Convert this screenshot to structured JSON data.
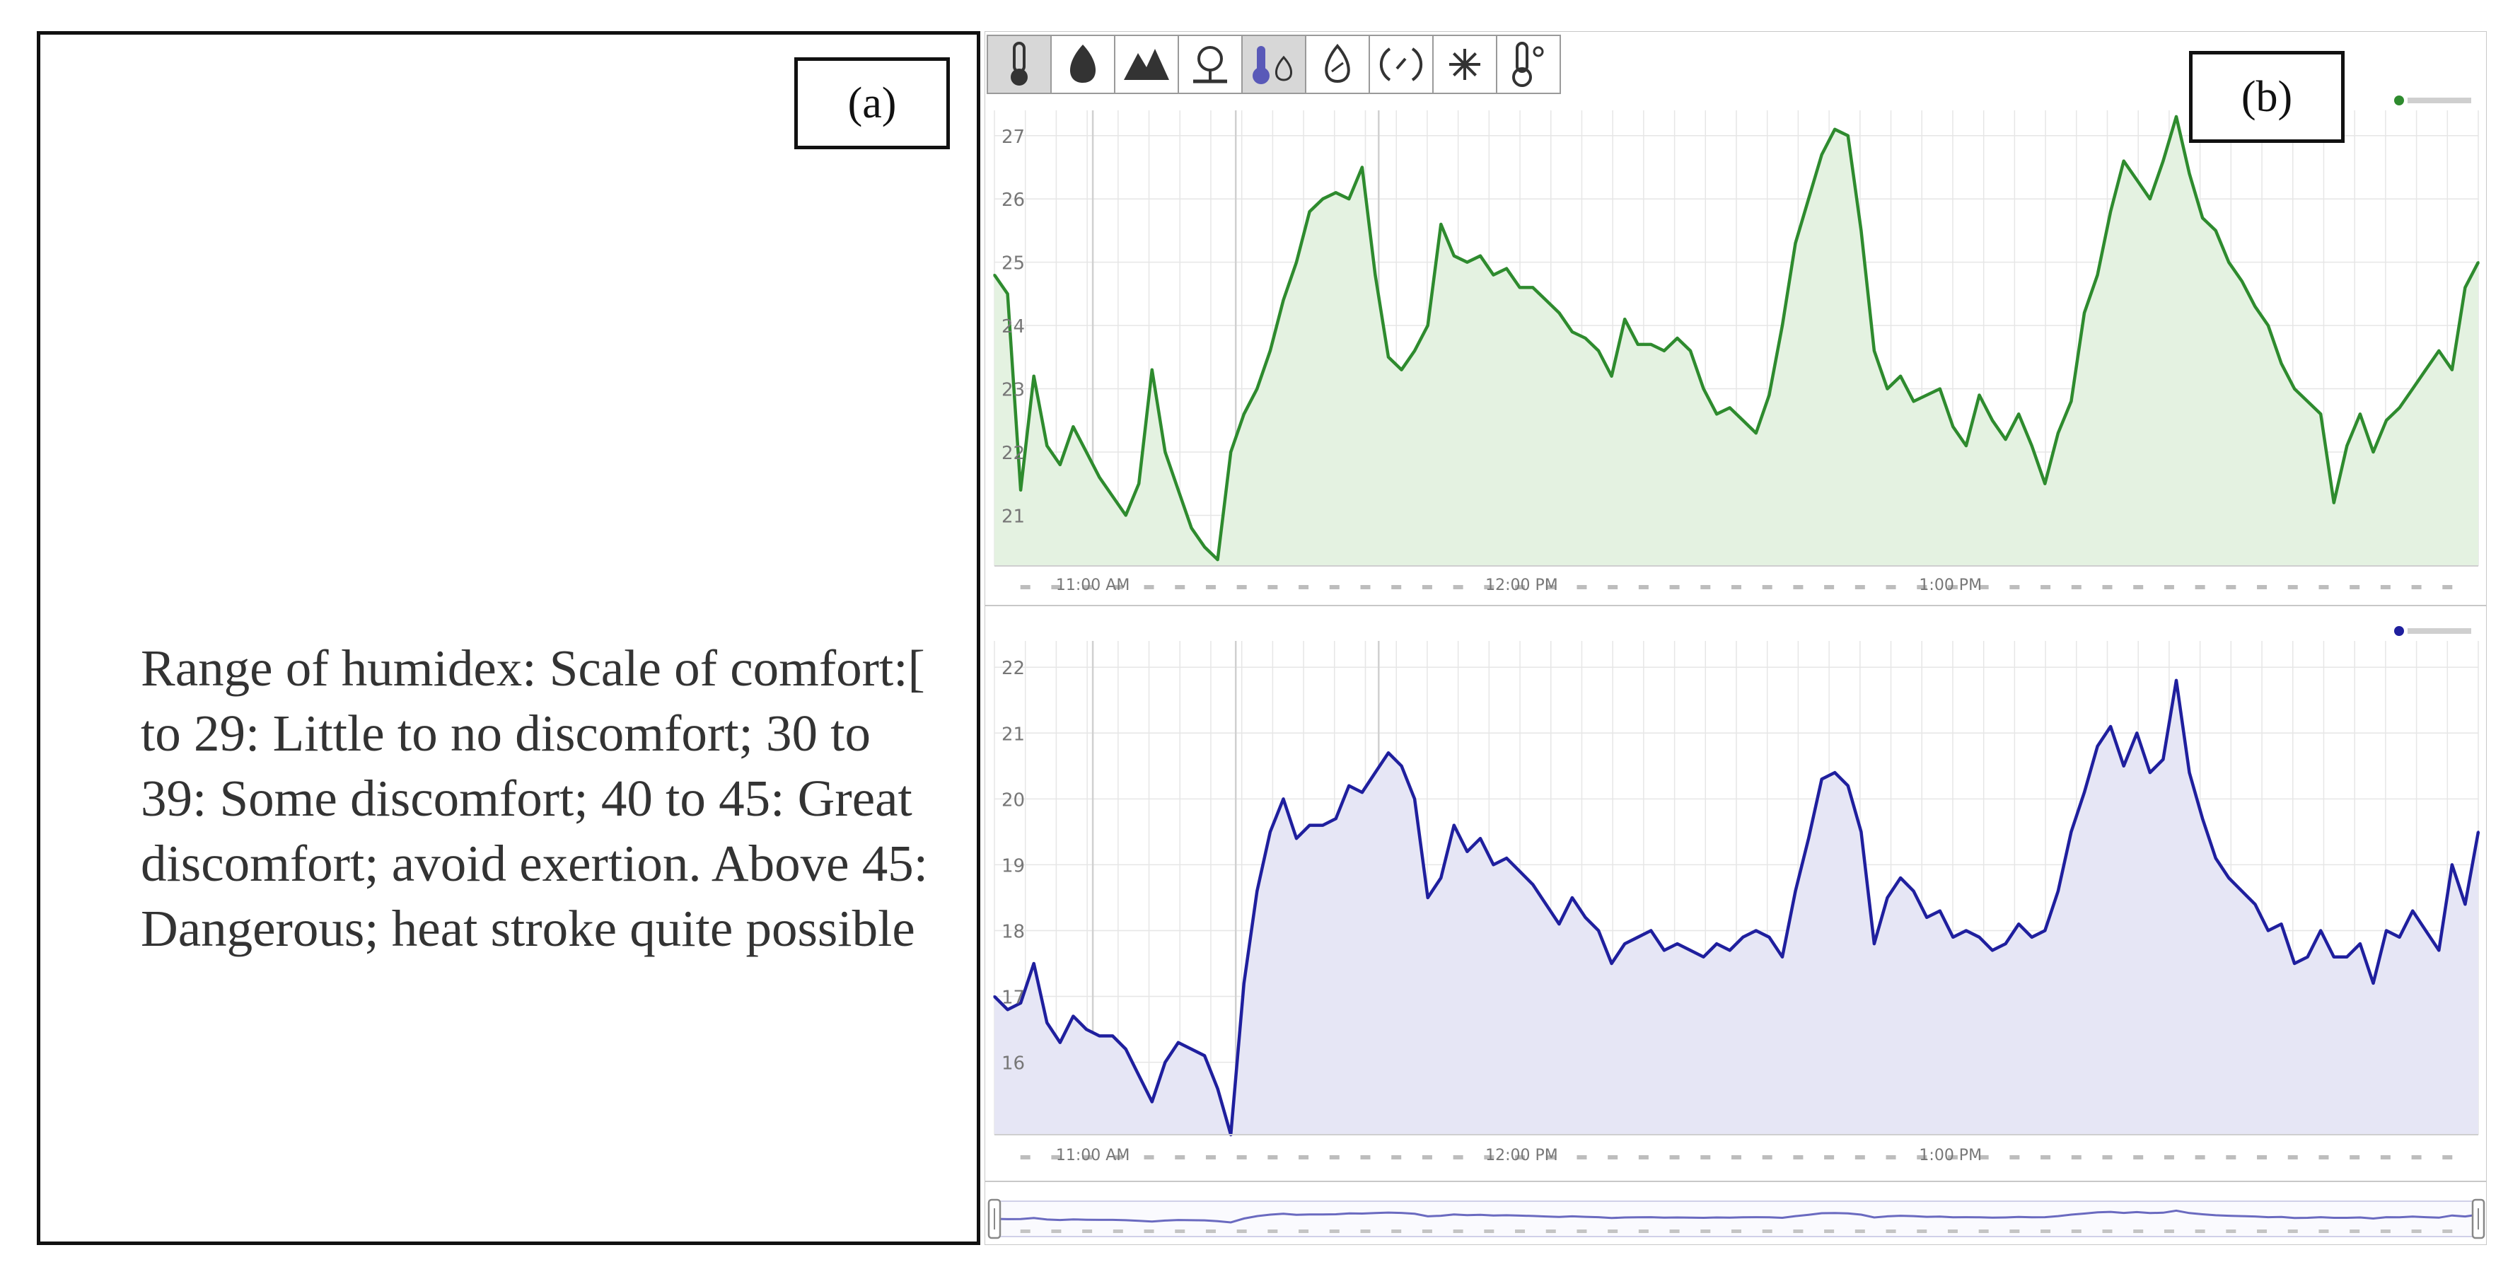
{
  "panel_a": {
    "tag": "(a)",
    "note": "Range of humidex: Scale of comfort:[ to 29: Little to no discomfort; 30 to 39: Some discomfort; 40 to 45: Great discomfort; avoid exertion. Above 45: Dangerous; heat stroke quite possible"
  },
  "panel_b": {
    "tag": "(b)",
    "toolbar": [
      "thermometer-icon",
      "water-drop-icon",
      "mountain-icon",
      "weather-station-icon",
      "dew-point-icon",
      "humidex-icon",
      "wind-icon",
      "sun-icon",
      "temperature-sensor-icon"
    ],
    "colors": {
      "temp": "#2e8b2e",
      "temp_fill": "#e4f2e1",
      "dew": "#1f1f9e",
      "dew_fill": "#e6e6f5",
      "grid": "#e6e6e6"
    }
  },
  "chart_data": [
    {
      "type": "area",
      "ylim": [
        20.2,
        27.4
      ],
      "yticks": [
        21,
        22,
        23,
        24,
        25,
        26,
        27
      ],
      "x_labels": [
        "11:00 AM",
        "12:00 PM",
        "1:00 PM"
      ],
      "series": [
        {
          "values": [
            24.8,
            24.5,
            21.4,
            23.2,
            22.1,
            21.8,
            22.4,
            22.0,
            21.6,
            21.3,
            21.0,
            21.5,
            23.3,
            22.0,
            21.4,
            20.8,
            20.5,
            20.3,
            22.0,
            22.6,
            23.0,
            23.6,
            24.4,
            25.0,
            25.8,
            26.0,
            26.1,
            26.0,
            26.5,
            24.8,
            23.5,
            23.3,
            23.6,
            24.0,
            25.6,
            25.1,
            25.0,
            25.1,
            24.8,
            24.9,
            24.6,
            24.6,
            24.4,
            24.2,
            23.9,
            23.8,
            23.6,
            23.2,
            24.1,
            23.7,
            23.7,
            23.6,
            23.8,
            23.6,
            23.0,
            22.6,
            22.7,
            22.5,
            22.3,
            22.9,
            24.0,
            25.3,
            26.0,
            26.7,
            27.1,
            27.0,
            25.5,
            23.6,
            23.0,
            23.2,
            22.8,
            22.9,
            23.0,
            22.4,
            22.1,
            22.9,
            22.5,
            22.2,
            22.6,
            22.1,
            21.5,
            22.3,
            22.8,
            24.2,
            24.8,
            25.8,
            26.6,
            26.3,
            26.0,
            26.6,
            27.3,
            26.4,
            25.7,
            25.5,
            25.0,
            24.7,
            24.3,
            24.0,
            23.4,
            23.0,
            22.8,
            22.6,
            21.2,
            22.1,
            22.6,
            22.0,
            22.5,
            22.7,
            23.0,
            23.3,
            23.6,
            23.3,
            24.6,
            25.0
          ]
        }
      ]
    },
    {
      "type": "area",
      "ylim": [
        14.9,
        22.4
      ],
      "yticks": [
        16,
        17,
        18,
        19,
        20,
        21,
        22
      ],
      "x_labels": [
        "11:00 AM",
        "12:00 PM",
        "1:00 PM"
      ],
      "series": [
        {
          "values": [
            17.0,
            16.8,
            16.9,
            17.5,
            16.6,
            16.3,
            16.7,
            16.5,
            16.4,
            16.4,
            16.2,
            15.8,
            15.4,
            16.0,
            16.3,
            16.2,
            16.1,
            15.6,
            14.9,
            17.2,
            18.6,
            19.5,
            20.0,
            19.4,
            19.6,
            19.6,
            19.7,
            20.2,
            20.1,
            20.4,
            20.7,
            20.5,
            20.0,
            18.5,
            18.8,
            19.6,
            19.2,
            19.4,
            19.0,
            19.1,
            18.9,
            18.7,
            18.4,
            18.1,
            18.5,
            18.2,
            18.0,
            17.5,
            17.8,
            17.9,
            18.0,
            17.7,
            17.8,
            17.7,
            17.6,
            17.8,
            17.7,
            17.9,
            18.0,
            17.9,
            17.6,
            18.6,
            19.4,
            20.3,
            20.4,
            20.2,
            19.5,
            17.8,
            18.5,
            18.8,
            18.6,
            18.2,
            18.3,
            17.9,
            18.0,
            17.9,
            17.7,
            17.8,
            18.1,
            17.9,
            18.0,
            18.6,
            19.5,
            20.1,
            20.8,
            21.1,
            20.5,
            21.0,
            20.4,
            20.6,
            21.8,
            20.4,
            19.7,
            19.1,
            18.8,
            18.6,
            18.4,
            18.0,
            18.1,
            17.5,
            17.6,
            18.0,
            17.6,
            17.6,
            17.8,
            17.2,
            18.0,
            17.9,
            18.3,
            18.0,
            17.7,
            19.0,
            18.4,
            19.5
          ]
        }
      ]
    }
  ]
}
